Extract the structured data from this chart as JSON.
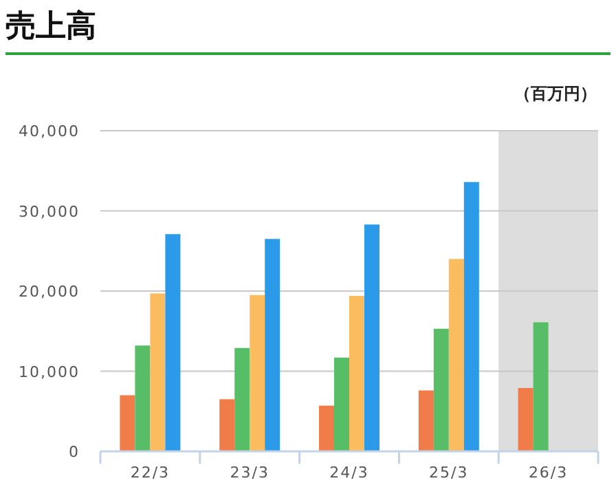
{
  "chart_data": {
    "type": "bar",
    "title": "売上高",
    "ylabel": "（百万円）",
    "categories": [
      "22/3",
      "23/3",
      "24/3",
      "25/3",
      "26/3"
    ],
    "series": [
      {
        "color": "#f07c4a",
        "values": [
          7000,
          6500,
          5700,
          7600,
          7900
        ]
      },
      {
        "color": "#57bd67",
        "values": [
          13200,
          12900,
          11700,
          15300,
          16100
        ]
      },
      {
        "color": "#fbbb5f",
        "values": [
          19700,
          19500,
          19400,
          24000,
          null
        ]
      },
      {
        "color": "#2b9be9",
        "values": [
          27100,
          26500,
          28300,
          33600,
          null
        ]
      }
    ],
    "ylim": [
      0,
      40000
    ],
    "yticks": [
      0,
      {
        "value": 10000,
        "label": "10,000"
      },
      {
        "value": 20000,
        "label": "20,000"
      },
      {
        "value": 30000,
        "label": "30,000"
      },
      {
        "value": 40000,
        "label": "40,000"
      }
    ],
    "grid": "y",
    "bands": [
      {
        "axis": "x",
        "from": "26/3",
        "to": "26/3",
        "color": "#dddddd"
      }
    ]
  }
}
